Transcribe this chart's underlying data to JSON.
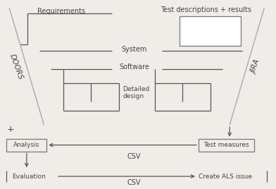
{
  "bg_color": "#f0ede8",
  "labels": {
    "requirements": "Requirements",
    "test_desc": "Test descriptions + results",
    "system": "System",
    "software": "Software",
    "detailed_design": "Detailed\ndesign",
    "doors": "DOORS",
    "jira": "JIRA",
    "analysis": "Analysis",
    "test_measures": "Test measures",
    "csv1": "CSV",
    "csv2": "CSV",
    "plus": "+",
    "evaluation": "Evaluation",
    "create_als": "Create ALS issue"
  },
  "colors": {
    "line": "#555555",
    "diag_line": "#aaaaaa",
    "box_border": "#777777",
    "box_fill": "#e8e4dc",
    "arrow": "#555555",
    "text": "#444444",
    "white_box_fill": "#ffffff"
  }
}
